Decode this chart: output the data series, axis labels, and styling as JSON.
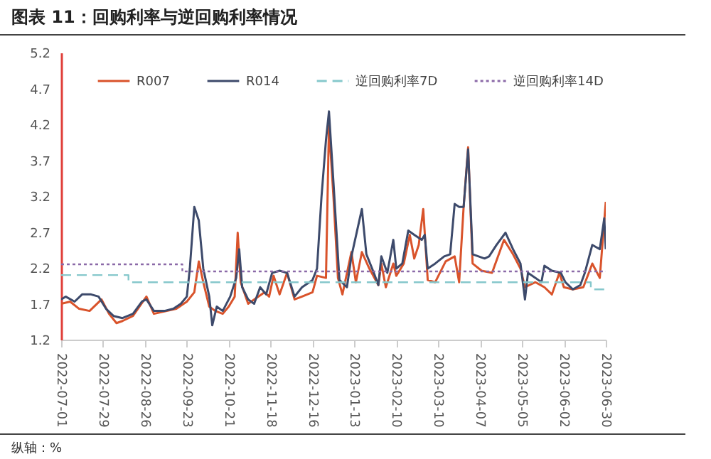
{
  "chart_data": {
    "type": "line",
    "title": "图表 11：回购利率与逆回购利率情况",
    "annotations": [
      "纵轴：%"
    ],
    "series": [
      {
        "name": "R007",
        "color": "#d9532b",
        "line_style": "solid",
        "x": [
          "2022-07-01",
          "2022-07-07",
          "2022-07-13",
          "2022-07-20",
          "2022-07-28",
          "2022-08-02",
          "2022-08-07",
          "2022-08-11",
          "2022-08-18",
          "2022-08-27",
          "2022-09-01",
          "2022-09-16",
          "2022-09-23",
          "2022-09-28",
          "2022-10-01",
          "2022-10-04",
          "2022-10-08",
          "2022-10-12",
          "2022-10-17",
          "2022-10-21",
          "2022-10-25",
          "2022-10-27",
          "2022-10-29",
          "2022-11-03",
          "2022-11-14",
          "2022-11-17",
          "2022-11-20",
          "2022-11-24",
          "2022-11-29",
          "2022-12-04",
          "2022-12-09",
          "2022-12-16",
          "2022-12-19",
          "2022-12-25",
          "2022-12-27",
          "2022-12-30",
          "2023-01-02",
          "2023-01-05",
          "2023-01-11",
          "2023-01-14",
          "2023-01-18",
          "2023-01-23",
          "2023-01-29",
          "2023-01-31",
          "2023-02-03",
          "2023-02-08",
          "2023-02-10",
          "2023-02-15",
          "2023-02-19",
          "2023-02-22",
          "2023-02-25",
          "2023-02-28",
          "2023-03-03",
          "2023-03-08",
          "2023-03-15",
          "2023-03-21",
          "2023-03-24",
          "2023-03-27",
          "2023-03-30",
          "2023-04-02",
          "2023-04-08",
          "2023-04-15",
          "2023-04-23",
          "2023-04-29",
          "2023-05-04",
          "2023-05-07",
          "2023-05-14",
          "2023-05-20",
          "2023-05-25",
          "2023-05-30",
          "2023-06-02",
          "2023-06-08",
          "2023-06-15",
          "2023-06-21",
          "2023-06-26",
          "2023-06-30"
        ],
        "values": [
          1.7,
          1.73,
          1.63,
          1.6,
          1.76,
          1.56,
          1.43,
          1.46,
          1.53,
          1.8,
          1.56,
          1.63,
          1.73,
          1.86,
          2.29,
          2.0,
          1.66,
          1.6,
          1.56,
          1.66,
          1.8,
          2.69,
          2.0,
          1.7,
          1.86,
          1.8,
          2.09,
          1.83,
          2.13,
          1.76,
          1.8,
          1.86,
          2.09,
          2.06,
          4.18,
          3.19,
          2.06,
          1.83,
          2.42,
          2.0,
          2.42,
          2.19,
          1.96,
          2.26,
          1.93,
          2.26,
          2.09,
          2.26,
          2.66,
          2.33,
          2.52,
          3.02,
          2.03,
          2.0,
          2.29,
          2.36,
          2.0,
          3.05,
          3.88,
          2.26,
          2.16,
          2.13,
          2.59,
          2.39,
          2.19,
          1.93,
          2.0,
          1.93,
          1.83,
          2.13,
          1.93,
          1.9,
          1.93,
          2.26,
          2.06,
          3.12
        ]
      },
      {
        "name": "R014",
        "color": "#3d4a6b",
        "line_style": "solid",
        "x": [
          "2022-07-01",
          "2022-07-04",
          "2022-07-10",
          "2022-07-15",
          "2022-07-21",
          "2022-07-26",
          "2022-07-31",
          "2022-08-05",
          "2022-08-11",
          "2022-08-18",
          "2022-08-24",
          "2022-08-27",
          "2022-09-01",
          "2022-09-08",
          "2022-09-14",
          "2022-09-19",
          "2022-09-23",
          "2022-09-25",
          "2022-09-28",
          "2022-10-01",
          "2022-10-04",
          "2022-10-08",
          "2022-10-10",
          "2022-10-13",
          "2022-10-17",
          "2022-10-22",
          "2022-10-26",
          "2022-10-28",
          "2022-10-30",
          "2022-11-03",
          "2022-11-07",
          "2022-11-11",
          "2022-11-15",
          "2022-11-19",
          "2022-11-24",
          "2022-11-29",
          "2022-12-04",
          "2022-12-09",
          "2022-12-16",
          "2022-12-19",
          "2022-12-22",
          "2022-12-25",
          "2022-12-27",
          "2022-12-30",
          "2023-01-03",
          "2023-01-08",
          "2023-01-11",
          "2023-01-18",
          "2023-01-21",
          "2023-01-26",
          "2023-01-29",
          "2023-01-31",
          "2023-02-04",
          "2023-02-08",
          "2023-02-10",
          "2023-02-14",
          "2023-02-18",
          "2023-02-22",
          "2023-02-27",
          "2023-03-01",
          "2023-03-03",
          "2023-03-08",
          "2023-03-14",
          "2023-03-18",
          "2023-03-21",
          "2023-03-24",
          "2023-03-27",
          "2023-03-30",
          "2023-04-02",
          "2023-04-06",
          "2023-04-10",
          "2023-04-13",
          "2023-04-18",
          "2023-04-24",
          "2023-04-29",
          "2023-05-04",
          "2023-05-07",
          "2023-05-09",
          "2023-05-14",
          "2023-05-18",
          "2023-05-20",
          "2023-05-25",
          "2023-05-31",
          "2023-06-03",
          "2023-06-08",
          "2023-06-13",
          "2023-06-16",
          "2023-06-21",
          "2023-06-26",
          "2023-06-29",
          "2023-06-30"
        ],
        "values": [
          1.76,
          1.8,
          1.73,
          1.83,
          1.83,
          1.8,
          1.63,
          1.53,
          1.5,
          1.56,
          1.73,
          1.76,
          1.6,
          1.6,
          1.63,
          1.7,
          1.8,
          2.19,
          3.05,
          2.86,
          2.19,
          1.8,
          1.4,
          1.66,
          1.6,
          1.8,
          2.06,
          2.46,
          1.93,
          1.76,
          1.7,
          1.93,
          1.83,
          2.13,
          2.16,
          2.13,
          1.8,
          1.93,
          2.03,
          2.19,
          3.19,
          3.98,
          4.38,
          3.39,
          2.03,
          1.93,
          2.36,
          3.02,
          2.39,
          2.13,
          1.96,
          2.36,
          2.13,
          2.59,
          2.19,
          2.26,
          2.72,
          2.66,
          2.59,
          2.66,
          2.19,
          2.26,
          2.36,
          2.39,
          3.09,
          3.05,
          3.05,
          3.85,
          2.39,
          2.36,
          2.33,
          2.36,
          2.52,
          2.69,
          2.46,
          2.26,
          1.76,
          2.13,
          2.06,
          2.0,
          2.23,
          2.16,
          2.13,
          2.0,
          1.9,
          1.96,
          2.13,
          2.52,
          2.46,
          2.89,
          2.46
        ]
      },
      {
        "name": "逆回购利率7D",
        "type": "step",
        "color": "#86c8cc",
        "line_style": "dashed",
        "x": [
          "2022-07-01",
          "2022-08-15",
          "2023-06-20",
          "2023-06-30"
        ],
        "values": [
          2.1,
          2.0,
          1.9,
          1.9
        ]
      },
      {
        "name": "逆回购利率14D",
        "type": "step",
        "color": "#8b6aa8",
        "line_style": "dotted",
        "x": [
          "2022-07-01",
          "2022-09-20",
          "2023-06-30"
        ],
        "values": [
          2.25,
          2.15,
          2.15
        ]
      }
    ],
    "xlim": [
      "2022-07-01",
      "2023-06-30"
    ],
    "xticks": [
      "2022-07-01",
      "2022-07-29",
      "2022-08-26",
      "2022-09-23",
      "2022-10-21",
      "2022-11-18",
      "2022-12-16",
      "2023-01-13",
      "2023-02-10",
      "2023-03-10",
      "2023-04-07",
      "2023-05-05",
      "2023-06-02",
      "2023-06-30"
    ],
    "ylim": [
      1.2,
      5.2
    ],
    "yticks": [
      1.2,
      1.7,
      2.2,
      2.7,
      3.2,
      3.7,
      4.2,
      4.7,
      5.2
    ],
    "grid": false,
    "legend": "top"
  }
}
